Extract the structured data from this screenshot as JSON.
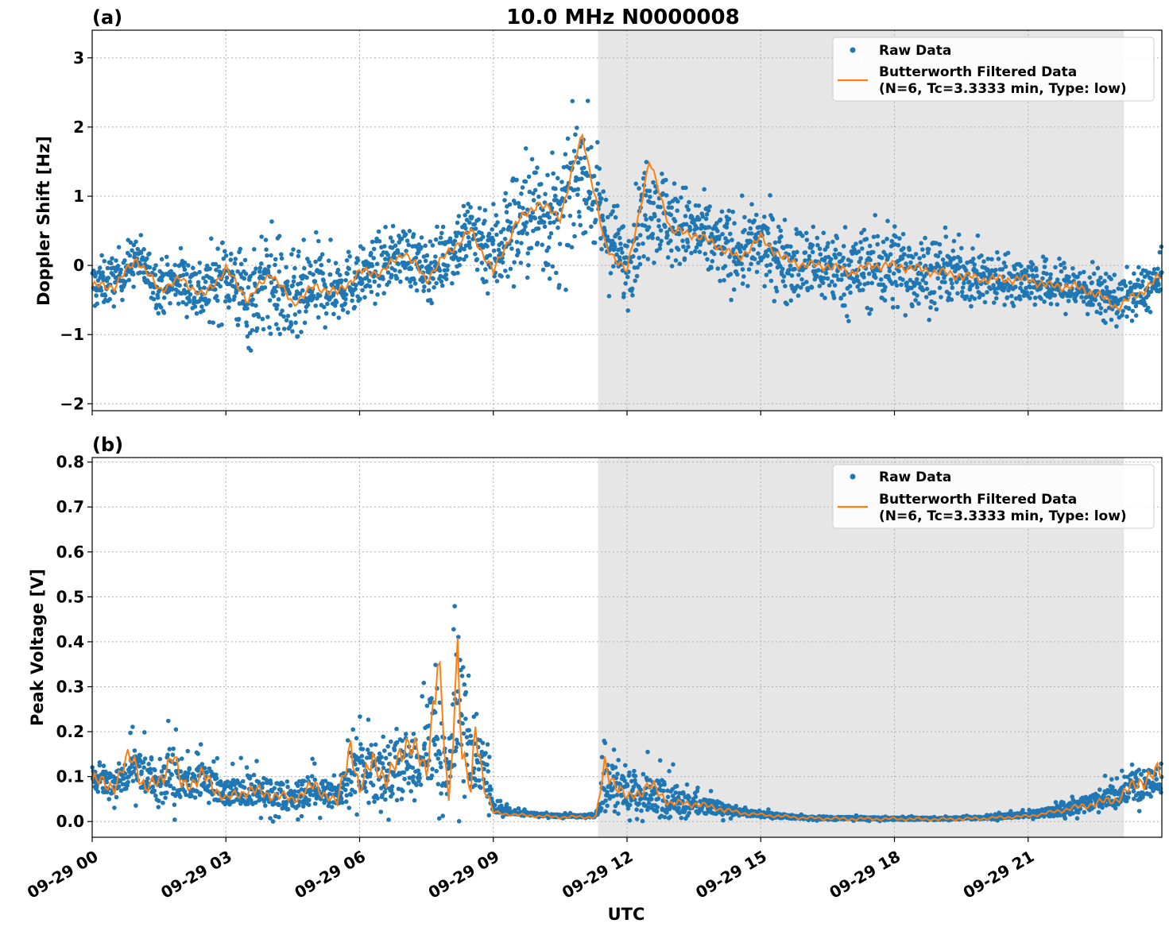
{
  "figure": {
    "title": "10.0 MHz N0000008",
    "xlabel": "UTC",
    "x_ticks": [
      "09-29 00",
      "09-29 03",
      "09-29 06",
      "09-29 09",
      "09-29 12",
      "09-29 15",
      "09-29 18",
      "09-29 21"
    ]
  },
  "colors": {
    "raw": "#1f77b4",
    "filtered": "#ff7f0e",
    "shade": "#e6e6e6"
  },
  "chart_data": [
    {
      "type": "scatter",
      "panel_label": "(a)",
      "title": "10.0 MHz N0000008",
      "xlabel": "",
      "ylabel": "Doppler Shift [Hz]",
      "x_unit": "hours UTC 2024-09-29",
      "xlim": [
        0,
        24
      ],
      "ylim": [
        -2.1,
        3.4
      ],
      "yticks": [
        -2,
        -1,
        0,
        1,
        2,
        3
      ],
      "ytick_labels": [
        "−2",
        "−1",
        "0",
        "1",
        "2",
        "3"
      ],
      "grid": true,
      "legend_position": "top-right",
      "shaded_interval": [
        11.35,
        23.15
      ],
      "series": [
        {
          "name": "Raw Data",
          "style": "points",
          "x": [
            0,
            0.5,
            1,
            1.5,
            2,
            2.5,
            3,
            3.5,
            4,
            4.5,
            5,
            5.5,
            6,
            6.5,
            7,
            7.5,
            8,
            8.5,
            9,
            9.5,
            10,
            10.5,
            11,
            11.5,
            12,
            12.5,
            13,
            13.5,
            14,
            14.5,
            15,
            15.5,
            16,
            16.5,
            17,
            17.5,
            18,
            18.5,
            19,
            19.5,
            20,
            20.5,
            21,
            21.5,
            22,
            22.5,
            23,
            23.5,
            24
          ],
          "center": [
            -0.3,
            -0.2,
            0.1,
            -0.3,
            -0.2,
            -0.4,
            -0.1,
            -0.5,
            -0.2,
            -0.6,
            -0.3,
            -0.3,
            -0.2,
            0.0,
            0.2,
            -0.1,
            0.2,
            0.5,
            0.2,
            0.6,
            0.8,
            0.6,
            1.5,
            0.5,
            0.0,
            1.0,
            0.6,
            0.5,
            0.3,
            0.2,
            0.3,
            0.1,
            0.0,
            0.0,
            -0.1,
            0.0,
            0.0,
            -0.1,
            -0.1,
            -0.1,
            -0.2,
            -0.2,
            -0.2,
            -0.3,
            -0.3,
            -0.4,
            -0.5,
            -0.4,
            -0.2
          ],
          "spread": [
            0.5,
            0.5,
            0.5,
            0.5,
            0.6,
            0.7,
            0.8,
            1.0,
            1.1,
            1.0,
            0.9,
            0.7,
            0.6,
            0.6,
            0.6,
            0.6,
            0.7,
            0.8,
            1.0,
            1.2,
            1.3,
            1.3,
            1.2,
            1.0,
            0.8,
            1.1,
            0.9,
            0.8,
            0.8,
            0.8,
            0.8,
            0.8,
            0.8,
            0.8,
            0.8,
            0.9,
            0.9,
            0.8,
            0.7,
            0.6,
            0.6,
            0.5,
            0.5,
            0.5,
            0.5,
            0.5,
            0.5,
            0.5,
            0.5
          ]
        },
        {
          "name": "Butterworth Filtered Data\n(N=6, Tc=3.3333 min, Type: low)",
          "style": "line",
          "x": [
            0,
            0.5,
            1,
            1.5,
            2,
            2.5,
            3,
            3.5,
            4,
            4.5,
            5,
            5.5,
            6,
            6.5,
            7,
            7.5,
            8,
            8.5,
            9,
            9.5,
            10,
            10.5,
            11,
            11.5,
            12,
            12.5,
            13,
            13.5,
            14,
            14.5,
            15,
            15.5,
            16,
            16.5,
            17,
            17.5,
            18,
            18.5,
            19,
            19.5,
            20,
            20.5,
            21,
            21.5,
            22,
            22.5,
            23,
            23.5,
            24
          ],
          "y": [
            -0.3,
            -0.3,
            0.1,
            -0.35,
            -0.2,
            -0.45,
            -0.05,
            -0.5,
            -0.1,
            -0.55,
            -0.3,
            -0.4,
            -0.1,
            -0.1,
            0.2,
            -0.2,
            0.2,
            0.5,
            -0.1,
            0.6,
            0.9,
            0.7,
            1.9,
            0.3,
            -0.1,
            1.5,
            0.5,
            0.45,
            0.3,
            0.1,
            0.4,
            0.1,
            0.0,
            0.0,
            -0.1,
            0.0,
            0.0,
            -0.05,
            -0.1,
            -0.15,
            -0.2,
            -0.2,
            -0.2,
            -0.3,
            -0.3,
            -0.4,
            -0.6,
            -0.4,
            -0.15
          ]
        }
      ]
    },
    {
      "type": "scatter",
      "panel_label": "(b)",
      "xlabel": "UTC",
      "ylabel": "Peak Voltage [V]",
      "x_unit": "hours UTC 2024-09-29",
      "xlim": [
        0,
        24
      ],
      "ylim": [
        -0.035,
        0.81
      ],
      "yticks": [
        0.0,
        0.1,
        0.2,
        0.3,
        0.4,
        0.5,
        0.6,
        0.7,
        0.8
      ],
      "ytick_labels": [
        "0.0",
        "0.1",
        "0.2",
        "0.3",
        "0.4",
        "0.5",
        "0.6",
        "0.7",
        "0.8"
      ],
      "grid": true,
      "legend_position": "top-right",
      "shaded_interval": [
        11.35,
        23.15
      ],
      "series": [
        {
          "name": "Raw Data",
          "style": "points",
          "x": [
            0,
            0.5,
            1,
            1.5,
            1.8,
            2,
            2.5,
            3,
            3.5,
            4,
            4.5,
            5,
            5.5,
            6,
            6.5,
            7,
            7.5,
            7.7,
            8,
            8.2,
            8.5,
            8.8,
            9,
            9.5,
            10,
            10.5,
            11,
            11.3,
            11.5,
            12,
            12.5,
            13,
            13.5,
            14,
            14.5,
            15,
            16,
            17,
            18,
            19,
            20,
            21,
            21.5,
            22,
            22.5,
            23,
            23.5,
            24
          ],
          "center": [
            0.09,
            0.08,
            0.12,
            0.07,
            0.1,
            0.08,
            0.09,
            0.06,
            0.07,
            0.06,
            0.05,
            0.07,
            0.05,
            0.12,
            0.1,
            0.12,
            0.14,
            0.2,
            0.08,
            0.28,
            0.12,
            0.12,
            0.03,
            0.02,
            0.015,
            0.012,
            0.012,
            0.012,
            0.08,
            0.06,
            0.06,
            0.05,
            0.035,
            0.03,
            0.02,
            0.015,
            0.008,
            0.007,
            0.006,
            0.006,
            0.008,
            0.015,
            0.02,
            0.03,
            0.04,
            0.06,
            0.08,
            0.09
          ],
          "spread": [
            0.05,
            0.05,
            0.09,
            0.06,
            0.15,
            0.06,
            0.07,
            0.05,
            0.07,
            0.06,
            0.06,
            0.07,
            0.05,
            0.12,
            0.12,
            0.14,
            0.15,
            0.3,
            0.08,
            0.32,
            0.12,
            0.12,
            0.02,
            0.01,
            0.006,
            0.006,
            0.006,
            0.006,
            0.1,
            0.08,
            0.08,
            0.07,
            0.04,
            0.03,
            0.015,
            0.012,
            0.006,
            0.006,
            0.005,
            0.005,
            0.006,
            0.012,
            0.02,
            0.03,
            0.04,
            0.05,
            0.07,
            0.06
          ]
        },
        {
          "name": "Butterworth Filtered Data\n(N=6, Tc=3.3333 min, Type: low)",
          "style": "line",
          "x": [
            0,
            0.5,
            0.9,
            1.2,
            1.5,
            1.8,
            2,
            2.5,
            3,
            3.5,
            4,
            4.5,
            5,
            5.5,
            5.8,
            6,
            6.3,
            6.6,
            7,
            7.5,
            7.75,
            8,
            8.2,
            8.3,
            8.5,
            8.6,
            8.8,
            9,
            9.5,
            10,
            10.5,
            11,
            11.3,
            11.5,
            12,
            12.5,
            13,
            13.5,
            14,
            14.5,
            15,
            16,
            17,
            18,
            19,
            20,
            21,
            21.5,
            22,
            22.5,
            23,
            23.5,
            24
          ],
          "y": [
            0.09,
            0.08,
            0.15,
            0.07,
            0.09,
            0.15,
            0.08,
            0.1,
            0.05,
            0.07,
            0.06,
            0.05,
            0.08,
            0.04,
            0.18,
            0.06,
            0.15,
            0.08,
            0.18,
            0.12,
            0.35,
            0.04,
            0.4,
            0.15,
            0.06,
            0.22,
            0.08,
            0.02,
            0.015,
            0.012,
            0.01,
            0.01,
            0.01,
            0.12,
            0.05,
            0.08,
            0.04,
            0.04,
            0.03,
            0.02,
            0.015,
            0.008,
            0.006,
            0.006,
            0.005,
            0.007,
            0.012,
            0.02,
            0.03,
            0.04,
            0.05,
            0.09,
            0.11
          ]
        }
      ]
    }
  ]
}
